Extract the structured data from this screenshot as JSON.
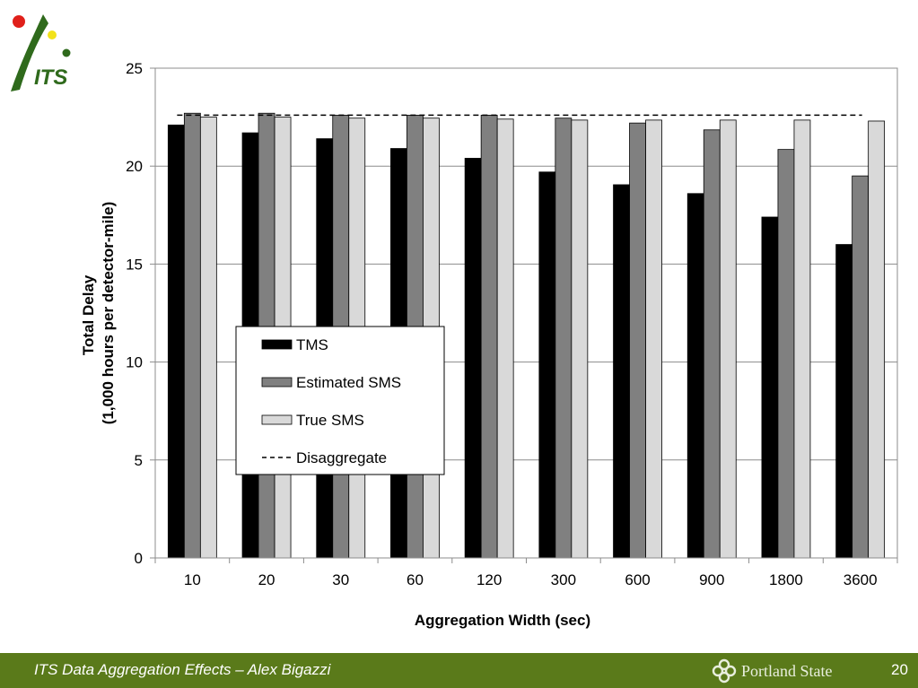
{
  "logo": {
    "text": "ITS",
    "colors": {
      "red": "#e0201a",
      "yellow": "#f2e21a",
      "green": "#2f6a1c"
    }
  },
  "chart_data": {
    "type": "bar",
    "title": "",
    "xlabel": "Aggregation Width (sec)",
    "ylabel_lines": [
      "Total Delay",
      "(1,000 hours per detector-mile)"
    ],
    "categories": [
      "10",
      "20",
      "30",
      "60",
      "120",
      "300",
      "600",
      "900",
      "1800",
      "3600"
    ],
    "ylim": [
      0,
      25
    ],
    "yticks": [
      0,
      5,
      10,
      15,
      20,
      25
    ],
    "grid": true,
    "legend_position": "middle-left",
    "series": [
      {
        "name": "TMS",
        "color": "#000000",
        "values": [
          22.1,
          21.7,
          21.4,
          20.9,
          20.4,
          19.7,
          19.05,
          18.6,
          17.4,
          16.0
        ]
      },
      {
        "name": "Estimated SMS",
        "color": "#808080",
        "values": [
          22.7,
          22.7,
          22.6,
          22.6,
          22.6,
          22.45,
          22.2,
          21.85,
          20.85,
          19.5
        ]
      },
      {
        "name": "True SMS",
        "color": "#d9d9d9",
        "values": [
          22.5,
          22.5,
          22.45,
          22.45,
          22.4,
          22.35,
          22.35,
          22.35,
          22.35,
          22.3
        ]
      }
    ],
    "reference_line": {
      "name": "Disaggregate",
      "value": 22.6,
      "style": "dashed",
      "color": "#000000"
    }
  },
  "footer": {
    "text": "ITS Data Aggregation Effects – Alex Bigazzi",
    "institution": "Portland State",
    "page_number": "20",
    "background": "#5a7a1a"
  }
}
